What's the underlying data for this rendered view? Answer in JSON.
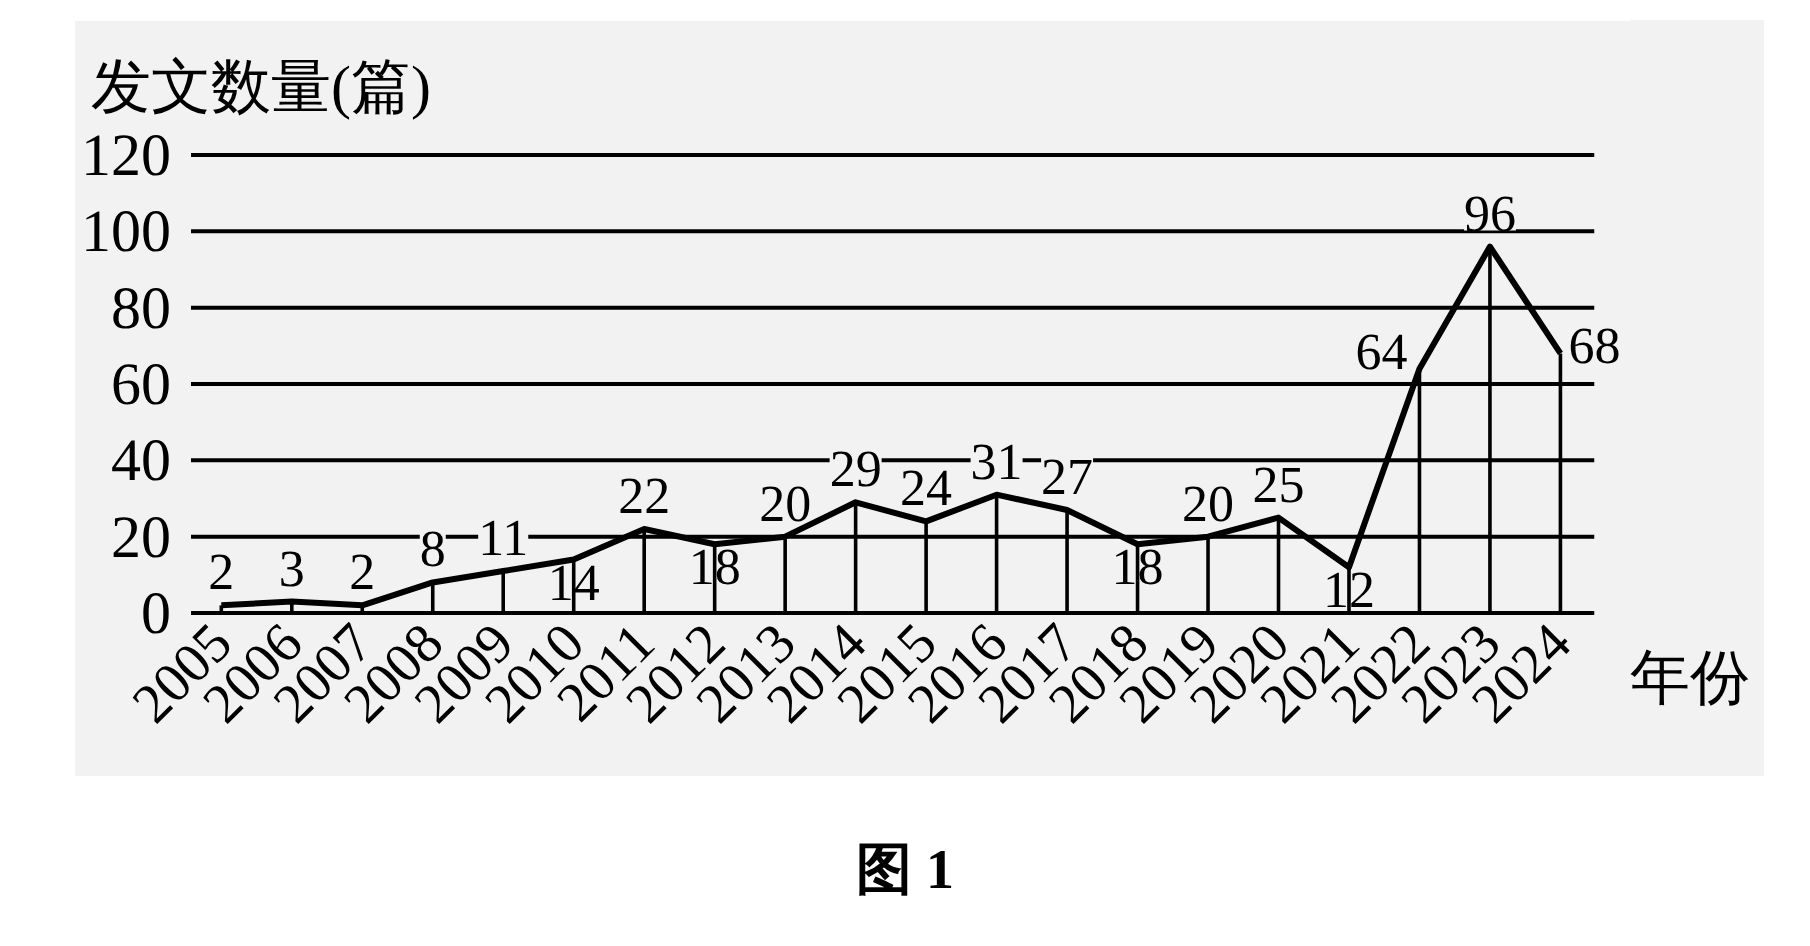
{
  "chart_data": {
    "type": "line",
    "ylabel": "发文数量(篇)",
    "xlabel": "年份",
    "annotations": [
      "图 1"
    ],
    "categories": [
      "2005",
      "2006",
      "2007",
      "2008",
      "2009",
      "2010",
      "2011",
      "2012",
      "2013",
      "2014",
      "2015",
      "2016",
      "2017",
      "2018",
      "2019",
      "2020",
      "2021",
      "2022",
      "2023",
      "2024"
    ],
    "series": [
      {
        "color": "#000000",
        "values": [
          2,
          3,
          2,
          8,
          11,
          14,
          22,
          18,
          20,
          29,
          24,
          31,
          27,
          18,
          20,
          25,
          12,
          64,
          96,
          68
        ],
        "value_labels": [
          "2",
          "3",
          "2",
          "8",
          "11",
          "14",
          "22",
          "18",
          "20",
          "29",
          "24",
          "31",
          "27",
          "18",
          "20",
          "25",
          "12",
          "64",
          "96",
          "68"
        ]
      },
      {
        "type": "bar",
        "color": "#000000",
        "values": [
          2,
          3,
          2,
          8,
          11,
          14,
          22,
          18,
          20,
          29,
          24,
          31,
          27,
          18,
          20,
          25,
          12,
          64,
          96,
          68
        ]
      }
    ],
    "ylim": [
      0,
      120
    ],
    "yticks": [
      0,
      20,
      40,
      60,
      80,
      100,
      120
    ],
    "grid": "y",
    "marker": "none"
  }
}
